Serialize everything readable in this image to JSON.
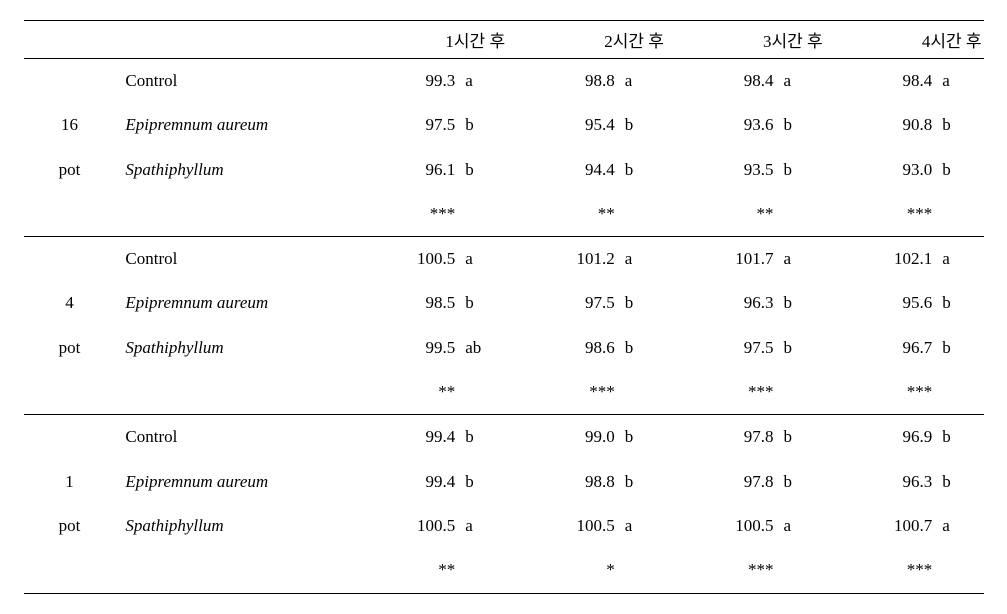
{
  "header": {
    "blank1": "",
    "blank2": "",
    "cols": [
      "1시간 후",
      "2시간 후",
      "3시간 후",
      "4시간 후"
    ]
  },
  "groups": [
    {
      "group_labels": [
        "16",
        "pot"
      ],
      "rows": [
        {
          "label": "Control",
          "italic": false,
          "vals": [
            [
              "99.3",
              "a"
            ],
            [
              "98.8",
              "a"
            ],
            [
              "98.4",
              "a"
            ],
            [
              "98.4",
              "a"
            ]
          ]
        },
        {
          "label": "Epipremnum aureum",
          "italic": true,
          "vals": [
            [
              "97.5",
              "b"
            ],
            [
              "95.4",
              "b"
            ],
            [
              "93.6",
              "b"
            ],
            [
              "90.8",
              "b"
            ]
          ]
        },
        {
          "label": "Spathiphyllum",
          "italic": true,
          "vals": [
            [
              "96.1",
              "b"
            ],
            [
              "94.4",
              "b"
            ],
            [
              "93.5",
              "b"
            ],
            [
              "93.0",
              "b"
            ]
          ]
        }
      ],
      "sig": [
        "***",
        "**",
        "**",
        "***"
      ]
    },
    {
      "group_labels": [
        "4",
        "pot"
      ],
      "rows": [
        {
          "label": "Control",
          "italic": false,
          "vals": [
            [
              "100.5",
              "a"
            ],
            [
              "101.2",
              "a"
            ],
            [
              "101.7",
              "a"
            ],
            [
              "102.1",
              "a"
            ]
          ]
        },
        {
          "label": "Epipremnum aureum",
          "italic": true,
          "vals": [
            [
              "98.5",
              "b"
            ],
            [
              "97.5",
              "b"
            ],
            [
              "96.3",
              "b"
            ],
            [
              "95.6",
              "b"
            ]
          ]
        },
        {
          "label": "Spathiphyllum",
          "italic": true,
          "vals": [
            [
              "99.5",
              "ab"
            ],
            [
              "98.6",
              "b"
            ],
            [
              "97.5",
              "b"
            ],
            [
              "96.7",
              "b"
            ]
          ]
        }
      ],
      "sig": [
        "**",
        "***",
        "***",
        "***"
      ]
    },
    {
      "group_labels": [
        "1",
        "pot"
      ],
      "rows": [
        {
          "label": "Control",
          "italic": false,
          "vals": [
            [
              "99.4",
              "b"
            ],
            [
              "99.0",
              "b"
            ],
            [
              "97.8",
              "b"
            ],
            [
              "96.9",
              "b"
            ]
          ]
        },
        {
          "label": "Epipremnum aureum",
          "italic": true,
          "vals": [
            [
              "99.4",
              "b"
            ],
            [
              "98.8",
              "b"
            ],
            [
              "97.8",
              "b"
            ],
            [
              "96.3",
              "b"
            ]
          ]
        },
        {
          "label": "Spathiphyllum",
          "italic": true,
          "vals": [
            [
              "100.5",
              "a"
            ],
            [
              "100.5",
              "a"
            ],
            [
              "100.5",
              "a"
            ],
            [
              "100.7",
              "a"
            ]
          ]
        }
      ],
      "sig": [
        "**",
        "*",
        "***",
        "***"
      ]
    }
  ]
}
